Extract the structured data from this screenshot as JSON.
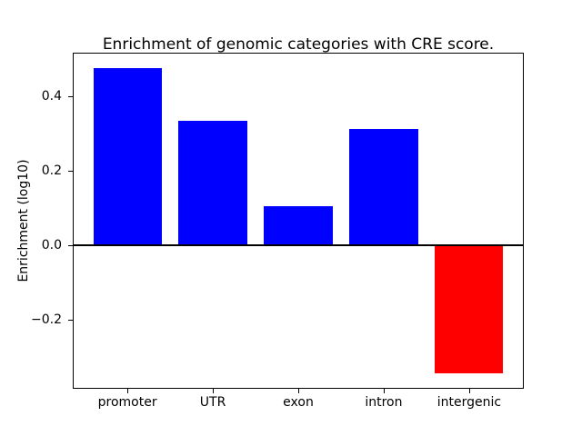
{
  "chart_data": {
    "type": "bar",
    "title": "Enrichment of genomic categories with CRE score.",
    "ylabel": "Enrichment (log10)",
    "xlabel": "",
    "categories": [
      "promoter",
      "UTR",
      "exon",
      "intron",
      "intergenic"
    ],
    "values": [
      0.476,
      0.334,
      0.106,
      0.312,
      -0.344
    ],
    "bar_colors": [
      "#0000ff",
      "#0000ff",
      "#0000ff",
      "#0000ff",
      "#ff0000"
    ],
    "positive_color": "#0000ff",
    "negative_color": "#ff0000",
    "bar_width_fraction": 0.8,
    "ylim": [
      -0.385,
      0.517
    ],
    "yticks": [
      -0.2,
      0.0,
      0.2,
      0.4
    ],
    "ytick_labels": [
      "−0.2",
      "0.0",
      "0.2",
      "0.4"
    ],
    "zero_line": true,
    "grid": false,
    "legend_position": "none",
    "axis_line_color": "#000000",
    "background_color": "#ffffff"
  }
}
